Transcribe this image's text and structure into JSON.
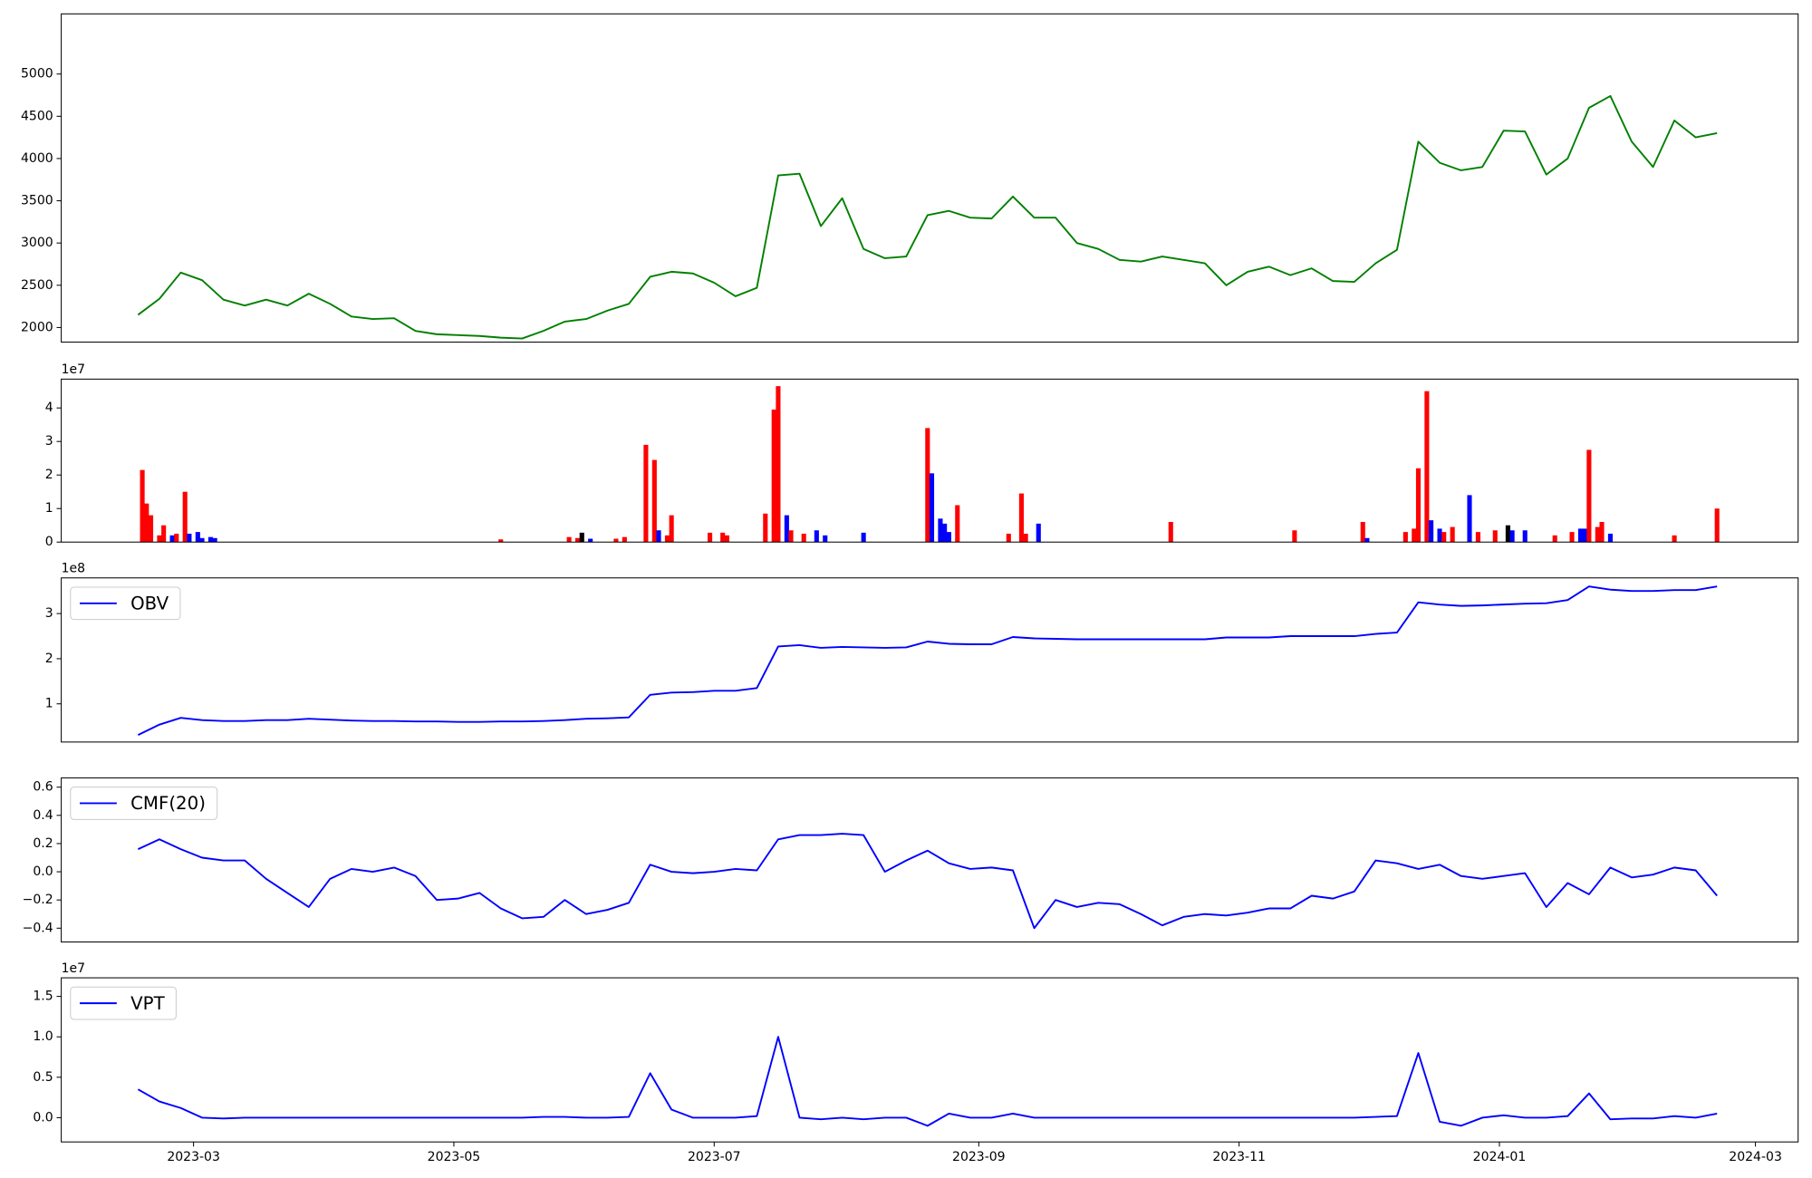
{
  "chart_data": {
    "type": "panels",
    "x": [
      "2023-02-16",
      "2023-02-21",
      "2023-02-26",
      "2023-03-03",
      "2023-03-08",
      "2023-03-13",
      "2023-03-18",
      "2023-03-23",
      "2023-03-28",
      "2023-04-02",
      "2023-04-07",
      "2023-04-12",
      "2023-04-17",
      "2023-04-22",
      "2023-04-27",
      "2023-05-02",
      "2023-05-07",
      "2023-05-12",
      "2023-05-17",
      "2023-05-22",
      "2023-05-27",
      "2023-06-01",
      "2023-06-06",
      "2023-06-11",
      "2023-06-16",
      "2023-06-21",
      "2023-06-26",
      "2023-07-01",
      "2023-07-06",
      "2023-07-11",
      "2023-07-16",
      "2023-07-21",
      "2023-07-26",
      "2023-07-31",
      "2023-08-05",
      "2023-08-10",
      "2023-08-15",
      "2023-08-20",
      "2023-08-25",
      "2023-08-30",
      "2023-09-04",
      "2023-09-09",
      "2023-09-14",
      "2023-09-19",
      "2023-09-24",
      "2023-09-29",
      "2023-10-04",
      "2023-10-09",
      "2023-10-14",
      "2023-10-19",
      "2023-10-24",
      "2023-10-29",
      "2023-11-03",
      "2023-11-08",
      "2023-11-13",
      "2023-11-18",
      "2023-11-23",
      "2023-11-28",
      "2023-12-03",
      "2023-12-08",
      "2023-12-13",
      "2023-12-18",
      "2023-12-23",
      "2023-12-28",
      "2024-01-02",
      "2024-01-07",
      "2024-01-12",
      "2024-01-17",
      "2024-01-22",
      "2024-01-27",
      "2024-02-01",
      "2024-02-06",
      "2024-02-11",
      "2024-02-16",
      "2024-02-21"
    ],
    "xlim": [
      "2023-01-29",
      "2024-03-11"
    ],
    "xticks": [
      {
        "value": "2023-03-01",
        "label": "2023-03"
      },
      {
        "value": "2023-05-01",
        "label": "2023-05"
      },
      {
        "value": "2023-07-01",
        "label": "2023-07"
      },
      {
        "value": "2023-09-01",
        "label": "2023-09"
      },
      {
        "value": "2023-11-01",
        "label": "2023-11"
      },
      {
        "value": "2024-01-01",
        "label": "2024-01"
      },
      {
        "value": "2024-03-01",
        "label": "2024-03"
      }
    ],
    "panels": [
      {
        "type": "line",
        "ylim": [
          1827,
          5712
        ],
        "yticks": [
          2000,
          2500,
          3000,
          3500,
          4000,
          4500,
          5000
        ],
        "series": [
          {
            "color": "#008000",
            "values": [
              2150,
              2340,
              2650,
              2560,
              2330,
              2260,
              2330,
              2260,
              2400,
              2280,
              2130,
              2100,
              2110,
              1960,
              1920,
              1910,
              1900,
              1880,
              1870,
              1960,
              2070,
              2100,
              2200,
              2280,
              2600,
              2660,
              2640,
              2530,
              2370,
              2470,
              3800,
              3820,
              3200,
              3530,
              2930,
              2820,
              2840,
              3330,
              3380,
              3300,
              3290,
              3550,
              3300,
              3300,
              3000,
              2930,
              2800,
              2780,
              2840,
              2800,
              2760,
              2500,
              2660,
              2720,
              2620,
              2700,
              2550,
              2540,
              2760,
              2920,
              4200,
              3950,
              3860,
              3900,
              4330,
              4320,
              3810,
              4000,
              4600,
              4740,
              4200,
              3900,
              4450,
              4250,
              4300
            ]
          }
        ]
      },
      {
        "type": "bar",
        "scale_label": "1e7",
        "ylim": [
          0,
          4.86
        ],
        "yticks": [
          0,
          1,
          2,
          3,
          4
        ],
        "x": [
          "2023-02-17",
          "2023-02-18",
          "2023-02-19",
          "2023-02-21",
          "2023-02-22",
          "2023-02-24",
          "2023-02-25",
          "2023-02-27",
          "2023-02-28",
          "2023-03-02",
          "2023-03-03",
          "2023-03-05",
          "2023-03-06",
          "2023-05-12",
          "2023-05-28",
          "2023-05-30",
          "2023-05-31",
          "2023-06-02",
          "2023-06-08",
          "2023-06-10",
          "2023-06-15",
          "2023-06-17",
          "2023-06-18",
          "2023-06-20",
          "2023-06-21",
          "2023-06-30",
          "2023-07-03",
          "2023-07-04",
          "2023-07-13",
          "2023-07-15",
          "2023-07-16",
          "2023-07-18",
          "2023-07-19",
          "2023-07-22",
          "2023-07-25",
          "2023-07-27",
          "2023-08-05",
          "2023-08-20",
          "2023-08-21",
          "2023-08-23",
          "2023-08-24",
          "2023-08-25",
          "2023-08-27",
          "2023-09-08",
          "2023-09-11",
          "2023-09-12",
          "2023-09-15",
          "2023-10-16",
          "2023-11-14",
          "2023-11-30",
          "2023-12-01",
          "2023-12-10",
          "2023-12-12",
          "2023-12-13",
          "2023-12-15",
          "2023-12-16",
          "2023-12-18",
          "2023-12-19",
          "2023-12-21",
          "2023-12-25",
          "2023-12-27",
          "2023-12-31",
          "2024-01-03",
          "2024-01-04",
          "2024-01-07",
          "2024-01-14",
          "2024-01-18",
          "2024-01-20",
          "2024-01-21",
          "2024-01-22",
          "2024-01-24",
          "2024-01-25",
          "2024-01-27",
          "2024-02-11",
          "2024-02-21"
        ],
        "values": [
          2.15,
          1.15,
          0.8,
          0.2,
          0.5,
          0.2,
          0.25,
          1.5,
          0.25,
          0.3,
          0.12,
          0.15,
          0.12,
          0.08,
          0.15,
          0.12,
          0.28,
          0.1,
          0.1,
          0.15,
          2.9,
          2.45,
          0.35,
          0.2,
          0.8,
          0.28,
          0.28,
          0.2,
          0.85,
          3.95,
          4.65,
          0.8,
          0.35,
          0.25,
          0.35,
          0.2,
          0.28,
          3.4,
          2.05,
          0.7,
          0.55,
          0.3,
          1.1,
          0.25,
          1.45,
          0.25,
          0.55,
          0.6,
          0.35,
          0.6,
          0.12,
          0.3,
          0.4,
          2.2,
          4.5,
          0.65,
          0.4,
          0.3,
          0.45,
          1.4,
          0.3,
          0.35,
          0.5,
          0.35,
          0.35,
          0.2,
          0.3,
          0.4,
          0.4,
          2.75,
          0.45,
          0.6,
          0.25,
          0.2,
          1.0
        ],
        "colors": [
          "#ff0000",
          "#ff0000",
          "#ff0000",
          "#ff0000",
          "#ff0000",
          "#0000ff",
          "#ff0000",
          "#ff0000",
          "#0000ff",
          "#0000ff",
          "#0000ff",
          "#0000ff",
          "#0000ff",
          "#ff0000",
          "#ff0000",
          "#ff0000",
          "#000000",
          "#0000ff",
          "#ff0000",
          "#ff0000",
          "#ff0000",
          "#ff0000",
          "#0000ff",
          "#ff0000",
          "#ff0000",
          "#ff0000",
          "#ff0000",
          "#ff0000",
          "#ff0000",
          "#ff0000",
          "#ff0000",
          "#0000ff",
          "#ff0000",
          "#ff0000",
          "#0000ff",
          "#0000ff",
          "#0000ff",
          "#ff0000",
          "#0000ff",
          "#0000ff",
          "#0000ff",
          "#0000ff",
          "#ff0000",
          "#ff0000",
          "#ff0000",
          "#ff0000",
          "#0000ff",
          "#ff0000",
          "#ff0000",
          "#ff0000",
          "#0000ff",
          "#ff0000",
          "#ff0000",
          "#ff0000",
          "#ff0000",
          "#0000ff",
          "#0000ff",
          "#ff0000",
          "#ff0000",
          "#0000ff",
          "#ff0000",
          "#ff0000",
          "#000000",
          "#0000ff",
          "#0000ff",
          "#ff0000",
          "#ff0000",
          "#0000ff",
          "#0000ff",
          "#ff0000",
          "#ff0000",
          "#ff0000",
          "#0000ff",
          "#ff0000",
          "#ff0000"
        ]
      },
      {
        "type": "line",
        "scale_label": "1e8",
        "ylim": [
          0.154,
          3.79
        ],
        "yticks": [
          1,
          2,
          3
        ],
        "legend": "upper left",
        "series": [
          {
            "name": "OBV",
            "color": "#0000ff",
            "values": [
              0.31,
              0.54,
              0.69,
              0.64,
              0.62,
              0.62,
              0.64,
              0.64,
              0.67,
              0.65,
              0.63,
              0.62,
              0.62,
              0.61,
              0.61,
              0.6,
              0.6,
              0.61,
              0.61,
              0.62,
              0.64,
              0.67,
              0.68,
              0.7,
              1.2,
              1.25,
              1.26,
              1.29,
              1.29,
              1.35,
              2.27,
              2.3,
              2.24,
              2.26,
              2.25,
              2.24,
              2.25,
              2.38,
              2.33,
              2.32,
              2.32,
              2.48,
              2.45,
              2.44,
              2.43,
              2.43,
              2.43,
              2.43,
              2.43,
              2.43,
              2.43,
              2.47,
              2.47,
              2.47,
              2.5,
              2.5,
              2.5,
              2.5,
              2.55,
              2.58,
              3.25,
              3.2,
              3.17,
              3.18,
              3.2,
              3.22,
              3.23,
              3.3,
              3.6,
              3.53,
              3.5,
              3.5,
              3.52,
              3.52,
              3.6
            ]
          }
        ]
      },
      {
        "type": "line",
        "ylim": [
          -0.498,
          0.666
        ],
        "yticks": [
          {
            "value": -0.4,
            "label": "−0.4"
          },
          {
            "value": -0.2,
            "label": "−0.2"
          },
          {
            "value": 0,
            "label": "0.0"
          },
          0.2,
          0.4,
          0.6
        ],
        "legend": "upper left",
        "series": [
          {
            "name": "CMF(20)",
            "color": "#0000ff",
            "values": [
              0.16,
              0.23,
              0.16,
              0.1,
              0.08,
              0.08,
              -0.05,
              -0.15,
              -0.25,
              -0.05,
              0.02,
              0,
              0.03,
              -0.03,
              -0.2,
              -0.19,
              -0.15,
              -0.26,
              -0.33,
              -0.32,
              -0.2,
              -0.3,
              -0.27,
              -0.22,
              0.05,
              0,
              -0.01,
              0,
              0.02,
              0.01,
              0.23,
              0.26,
              0.26,
              0.27,
              0.26,
              0,
              0.08,
              0.15,
              0.06,
              0.02,
              0.03,
              0.01,
              -0.4,
              -0.2,
              -0.25,
              -0.22,
              -0.23,
              -0.3,
              -0.38,
              -0.32,
              -0.3,
              -0.31,
              -0.29,
              -0.26,
              -0.26,
              -0.17,
              -0.19,
              -0.14,
              0.08,
              0.06,
              0.02,
              0.05,
              -0.03,
              -0.05,
              -0.03,
              -0.01,
              -0.25,
              -0.08,
              -0.16,
              0.03,
              -0.04,
              -0.02,
              0.03,
              0.01,
              -0.17
            ]
          }
        ]
      },
      {
        "type": "line",
        "scale_label": "1e7",
        "ylim": [
          -0.3,
          1.73
        ],
        "yticks": [
          {
            "value": 0,
            "label": "0.0"
          },
          0.5,
          {
            "value": 1,
            "label": "1.0"
          },
          1.5
        ],
        "legend": "upper left",
        "series": [
          {
            "name": "VPT",
            "color": "#0000ff",
            "values": [
              0.35,
              0.2,
              0.12,
              0,
              -0.01,
              0,
              0,
              0,
              0,
              0,
              0,
              0,
              0,
              0,
              0,
              0,
              0,
              0,
              0,
              0.01,
              0.01,
              0,
              0,
              0.01,
              0.55,
              0.1,
              0,
              0,
              0,
              0.02,
              1,
              0,
              -0.02,
              0,
              -0.02,
              0,
              0,
              -0.1,
              0.05,
              0,
              0,
              0.05,
              0,
              0,
              0,
              0,
              0,
              0,
              0,
              0,
              0,
              0,
              0,
              0,
              0,
              0,
              0,
              0,
              0.01,
              0.02,
              0.8,
              -0.05,
              -0.1,
              0,
              0.03,
              0,
              0,
              0.02,
              0.3,
              -0.02,
              -0.01,
              -0.01,
              0.02,
              0,
              0.05
            ]
          }
        ]
      }
    ]
  }
}
